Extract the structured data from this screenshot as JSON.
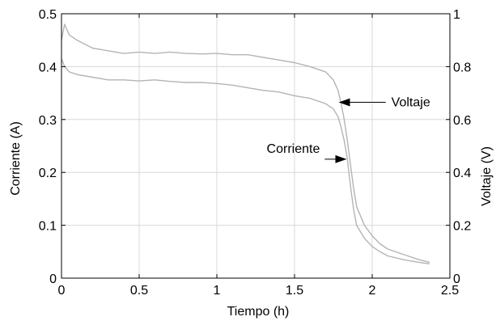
{
  "chart_data": {
    "type": "line",
    "title": "",
    "xlabel": "Tiempo (h)",
    "ylabel_left": "Corriente (A)",
    "ylabel_right": "Voltaje (V)",
    "xlim": [
      0,
      2.5
    ],
    "ylim_left": [
      0,
      0.5
    ],
    "ylim_right": [
      0,
      1
    ],
    "grid": true,
    "legend": "none",
    "x_ticks": [
      "0",
      "0.5",
      "1",
      "1.5",
      "2",
      "2.5"
    ],
    "y_left_ticks": [
      "0",
      "0.1",
      "0.2",
      "0.3",
      "0.4",
      "0.5"
    ],
    "y_right_ticks": [
      "0",
      "0.2",
      "0.4",
      "0.6",
      "0.8",
      "1"
    ],
    "series": [
      {
        "name": "Voltaje",
        "axis": "right",
        "color": "#b4b4b4",
        "x": [
          0.0,
          0.02,
          0.05,
          0.1,
          0.2,
          0.3,
          0.4,
          0.5,
          0.6,
          0.7,
          0.8,
          0.9,
          1.0,
          1.1,
          1.2,
          1.3,
          1.4,
          1.5,
          1.6,
          1.7,
          1.75,
          1.78,
          1.8,
          1.82,
          1.84,
          1.86,
          1.88,
          1.9,
          1.95,
          2.0,
          2.05,
          2.1,
          2.2,
          2.3,
          2.37
        ],
        "y": [
          0.9,
          0.96,
          0.92,
          0.9,
          0.87,
          0.86,
          0.85,
          0.855,
          0.85,
          0.855,
          0.85,
          0.848,
          0.85,
          0.845,
          0.845,
          0.835,
          0.825,
          0.815,
          0.8,
          0.78,
          0.75,
          0.71,
          0.66,
          0.6,
          0.52,
          0.43,
          0.34,
          0.27,
          0.2,
          0.16,
          0.13,
          0.11,
          0.09,
          0.07,
          0.06
        ]
      },
      {
        "name": "Corriente",
        "axis": "left",
        "color": "#b4b4b4",
        "x": [
          0.0,
          0.02,
          0.05,
          0.1,
          0.2,
          0.3,
          0.4,
          0.5,
          0.6,
          0.7,
          0.8,
          0.9,
          1.0,
          1.1,
          1.2,
          1.3,
          1.4,
          1.5,
          1.6,
          1.7,
          1.75,
          1.78,
          1.8,
          1.82,
          1.84,
          1.86,
          1.88,
          1.9,
          1.95,
          2.0,
          2.05,
          2.1,
          2.2,
          2.3,
          2.37
        ],
        "y": [
          0.415,
          0.4,
          0.39,
          0.385,
          0.38,
          0.375,
          0.375,
          0.373,
          0.375,
          0.372,
          0.37,
          0.37,
          0.368,
          0.365,
          0.36,
          0.355,
          0.352,
          0.345,
          0.34,
          0.33,
          0.32,
          0.305,
          0.285,
          0.26,
          0.225,
          0.175,
          0.13,
          0.1,
          0.075,
          0.06,
          0.05,
          0.042,
          0.035,
          0.03,
          0.027
        ]
      }
    ],
    "annotations": [
      {
        "text": "Voltaje",
        "arrow_to": [
          1.79,
          0.665
        ]
      },
      {
        "text": "Corriente",
        "arrow_to": [
          1.83,
          0.225
        ]
      }
    ]
  }
}
